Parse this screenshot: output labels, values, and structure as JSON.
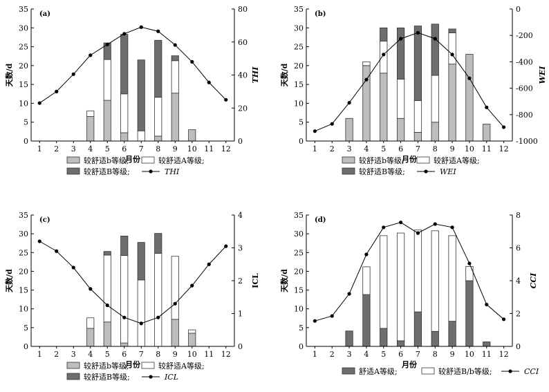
{
  "figure": {
    "xlabel": "月份",
    "ylabel_left": "天数/d"
  },
  "chart_data": [
    {
      "panel": "(a)",
      "type": "bar",
      "x": [
        1,
        2,
        3,
        4,
        5,
        6,
        7,
        8,
        9,
        10,
        11,
        12
      ],
      "xlabel": "月份",
      "ylabel": "天数/d",
      "ylim": [
        0,
        35
      ],
      "y2label": "THI",
      "y2lim": [
        0,
        80
      ],
      "series": [
        {
          "name": "较舒适b等级",
          "color": "#bdbdbd",
          "values": [
            0,
            0,
            0,
            6.5,
            10.8,
            2.2,
            0,
            1.3,
            12.7,
            3,
            0,
            0
          ]
        },
        {
          "name": "较舒适A等级",
          "color": "#ffffff",
          "values": [
            0,
            0,
            0,
            1.5,
            10.8,
            10.3,
            2.7,
            10.3,
            8.6,
            0,
            0,
            0
          ]
        },
        {
          "name": "较舒适B等级",
          "color": "#6e6e6e",
          "values": [
            0,
            0,
            0,
            0,
            4.4,
            15.8,
            18.8,
            15.1,
            1.3,
            0,
            0,
            0
          ]
        }
      ],
      "line": {
        "name": "THI",
        "values": [
          23,
          30,
          40.5,
          52,
          58.5,
          65,
          69,
          66.5,
          58.2,
          48,
          35.5,
          25
        ]
      }
    },
    {
      "panel": "(b)",
      "type": "bar",
      "x": [
        1,
        2,
        3,
        4,
        5,
        6,
        7,
        8,
        9,
        10,
        11,
        12
      ],
      "xlabel": "月份",
      "ylabel": "天数/d",
      "ylim": [
        0,
        35
      ],
      "y2label": "WEI",
      "y2lim": [
        -1000,
        0
      ],
      "series": [
        {
          "name": "较舒适b等级",
          "color": "#bdbdbd",
          "values": [
            0,
            0,
            6,
            20,
            18,
            6,
            2.3,
            5,
            20.4,
            23,
            4.5,
            0
          ]
        },
        {
          "name": "较舒适A等级",
          "color": "#ffffff",
          "values": [
            0,
            0,
            0,
            1,
            8.5,
            10.4,
            8.4,
            12.4,
            8.3,
            0,
            0,
            0
          ]
        },
        {
          "name": "较舒适B等级",
          "color": "#6e6e6e",
          "values": [
            0,
            0,
            0,
            0,
            3.5,
            13.6,
            19.8,
            13.6,
            1,
            0,
            0,
            0
          ]
        }
      ],
      "line": {
        "name": "WEI",
        "values": [
          -925,
          -870,
          -710,
          -535,
          -345,
          -225,
          -180,
          -225,
          -345,
          -525,
          -745,
          -895
        ]
      }
    },
    {
      "panel": "(c)",
      "type": "bar",
      "x": [
        1,
        2,
        3,
        4,
        5,
        6,
        7,
        8,
        9,
        10,
        11,
        12
      ],
      "xlabel": "月份",
      "ylabel": "天数/d",
      "ylim": [
        0,
        35
      ],
      "y2label": "ICL",
      "y2lim": [
        0,
        4
      ],
      "series": [
        {
          "name": "较舒适b等级",
          "color": "#bdbdbd",
          "values": [
            0,
            0,
            0,
            4.8,
            6.5,
            0.9,
            0,
            0,
            7.2,
            3.5,
            0,
            0
          ]
        },
        {
          "name": "较舒适A等级",
          "color": "#ffffff",
          "values": [
            0,
            0,
            0,
            2.8,
            17.8,
            23.3,
            17.7,
            24.8,
            16.8,
            0.9,
            0,
            0
          ]
        },
        {
          "name": "较舒适B等级",
          "color": "#6e6e6e",
          "values": [
            0,
            0,
            0,
            0,
            1,
            5.2,
            10,
            5.3,
            0,
            0,
            0,
            0
          ]
        }
      ],
      "line": {
        "name": "ICL",
        "values": [
          3.2,
          2.9,
          2.4,
          1.75,
          1.25,
          0.88,
          0.7,
          0.88,
          1.3,
          1.85,
          2.5,
          3.05
        ]
      }
    },
    {
      "panel": "(d)",
      "type": "bar",
      "x": [
        1,
        2,
        3,
        4,
        5,
        6,
        7,
        8,
        9,
        10,
        11,
        12
      ],
      "xlabel": "月份",
      "ylabel": "天数/d",
      "ylim": [
        0,
        35
      ],
      "y2label": "CCI",
      "y2lim": [
        0,
        8
      ],
      "series": [
        {
          "name": "舒适A等级",
          "color": "#6e6e6e",
          "values": [
            0,
            0,
            4.1,
            13.8,
            4.8,
            1.5,
            9.2,
            4,
            6.7,
            17.5,
            1.2,
            0
          ]
        },
        {
          "name": "较舒适B/b等级",
          "color": "#ffffff",
          "values": [
            0,
            0,
            0,
            7.4,
            24.7,
            28.7,
            21.8,
            26.8,
            22.8,
            3.8,
            0,
            0
          ]
        }
      ],
      "line": {
        "name": "CCI",
        "values": [
          1.55,
          1.85,
          3.2,
          5.6,
          7.25,
          7.55,
          6.9,
          7.45,
          7.25,
          5.05,
          2.55,
          1.65
        ]
      }
    }
  ],
  "legends": [
    {
      "line1": [
        {
          "swatch": "#bdbdbd",
          "label": "较舒适b等级;"
        },
        {
          "swatch": "#ffffff",
          "label": "较舒适A等级;"
        }
      ],
      "line2": [
        {
          "swatch": "#6e6e6e",
          "label": "较舒适B等级;"
        },
        {
          "line": true,
          "label": "THI"
        }
      ]
    },
    {
      "line1": [
        {
          "swatch": "#bdbdbd",
          "label": "较舒适b等级;"
        },
        {
          "swatch": "#ffffff",
          "label": "较舒适A等级;"
        }
      ],
      "line2": [
        {
          "swatch": "#6e6e6e",
          "label": "较舒适B等级;"
        },
        {
          "line": true,
          "label": "WEI"
        }
      ]
    },
    {
      "line1": [
        {
          "swatch": "#bdbdbd",
          "label": "较舒适b等级;"
        },
        {
          "swatch": "#ffffff",
          "label": "较舒适A等级;"
        }
      ],
      "line2": [
        {
          "swatch": "#6e6e6e",
          "label": "较舒适B等级;"
        },
        {
          "line": true,
          "label": "ICL"
        }
      ]
    },
    {
      "line1": [
        {
          "swatch": "#6e6e6e",
          "label": "舒适A等级;"
        },
        {
          "swatch": "#ffffff",
          "label": "较舒适B/b等级;"
        },
        {
          "line": true,
          "label": "CCI"
        }
      ]
    }
  ],
  "ticks": {
    "left": [
      0,
      5,
      10,
      15,
      20,
      25,
      30,
      35
    ],
    "right": [
      [
        0,
        20,
        40,
        60,
        80
      ],
      [
        0,
        -200,
        -400,
        -600,
        -800,
        -1000
      ],
      [
        0,
        1,
        2,
        3,
        4
      ],
      [
        0,
        2,
        4,
        6,
        8
      ]
    ]
  }
}
